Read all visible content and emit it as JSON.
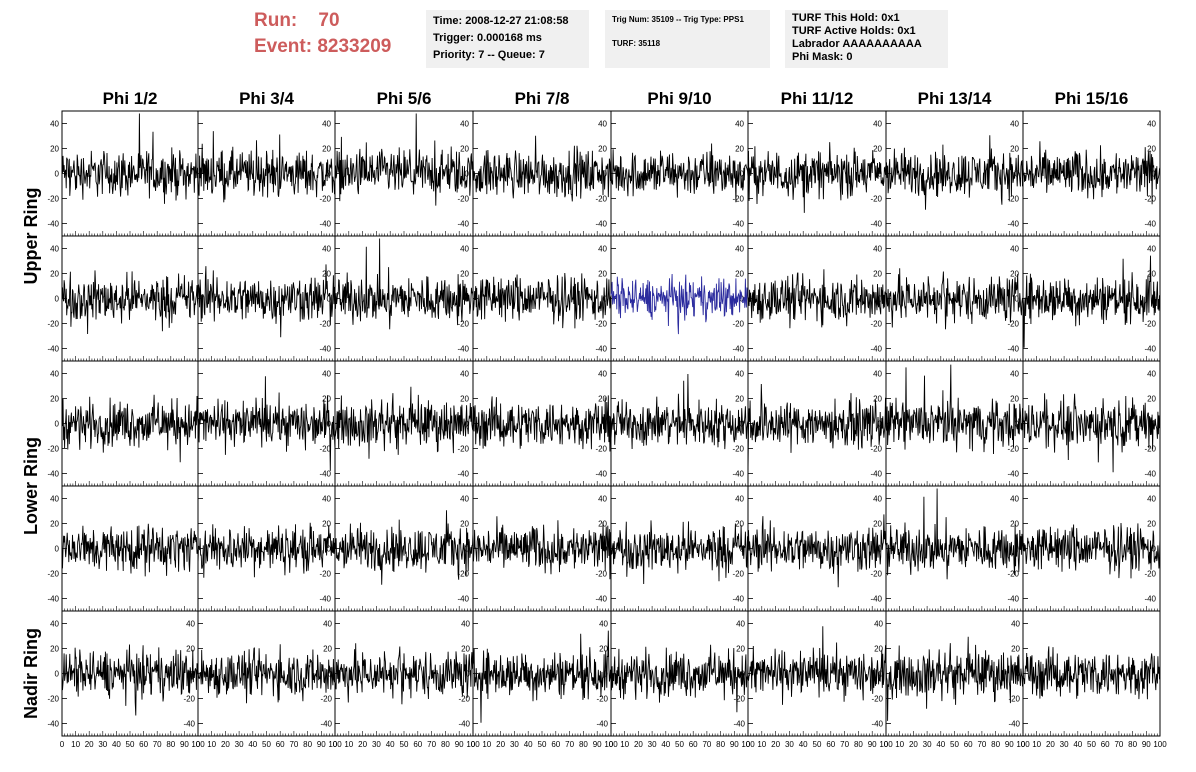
{
  "header": {
    "run_label": "Run:",
    "run_value": "70",
    "event_label": "Event:",
    "event_value": "8233209"
  },
  "info_boxes": [
    {
      "lines": [
        "Time: 2008-12-27 21:08:58",
        "Trigger: 0.000168 ms",
        "Priority: 7 -- Queue: 7"
      ]
    },
    {
      "lines": [
        "Trig Num: 35109 -- Trig Type: PPS1",
        "",
        "TURF: 35118"
      ]
    },
    {
      "lines": [
        "TURF This Hold: 0x1",
        "TURF Active Holds: 0x1",
        "Labrador AAAAAAAAAA",
        "Phi Mask: 0"
      ]
    }
  ],
  "chart_data": {
    "type": "line",
    "column_labels": [
      "Phi 1/2",
      "Phi 3/4",
      "Phi 5/6",
      "Phi 7/8",
      "Phi 9/10",
      "Phi 11/12",
      "Phi 13/14",
      "Phi 15/16"
    ],
    "ring_labels": [
      {
        "text": "Upper Ring",
        "rows": [
          0,
          1
        ]
      },
      {
        "text": "Lower Ring",
        "rows": [
          2,
          3
        ]
      },
      {
        "text": "Nadir Ring",
        "rows": [
          4
        ]
      }
    ],
    "xlim": [
      0,
      100
    ],
    "ylim": [
      -50,
      50
    ],
    "x_ticks": [
      0,
      10,
      20,
      30,
      40,
      50,
      60,
      70,
      80,
      90,
      100
    ],
    "y_ticks": [
      -40,
      -20,
      0,
      20,
      40
    ],
    "rows": 5,
    "cols": 8,
    "samples": 260,
    "trace_color": "#000000",
    "highlight_color": "#2b2b9e",
    "highlight": {
      "row": 1,
      "col": 4
    }
  }
}
